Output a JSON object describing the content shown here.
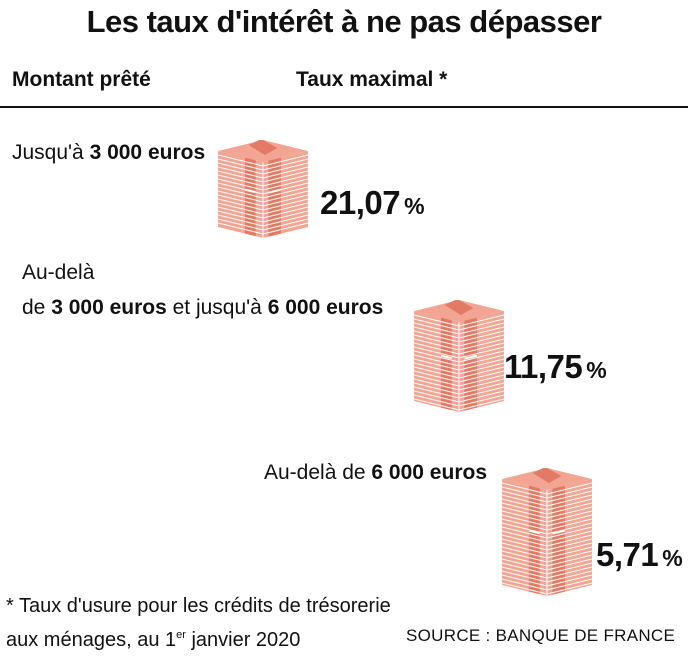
{
  "title": "Les taux d'intérêt à ne pas dépasser",
  "headers": {
    "amount": "Montant prêté",
    "rate": "Taux maximal *"
  },
  "tiers": [
    {
      "label_lines": [
        {
          "pre": "Jusqu'à ",
          "bold": "3 000 euros",
          "post": ""
        }
      ],
      "rate": "21,07",
      "unit": "%"
    },
    {
      "label_lines": [
        {
          "pre": "Au-delà",
          "bold": "",
          "post": ""
        },
        {
          "pre": "de ",
          "bold": "3 000 euros",
          "post": " et jusqu'à ",
          "bold2": "6 000 euros"
        }
      ],
      "rate": "11,75",
      "unit": "%"
    },
    {
      "label_lines": [
        {
          "pre": "Au-delà de ",
          "bold": "6 000 euros",
          "post": ""
        }
      ],
      "rate": "5,71",
      "unit": "%"
    }
  ],
  "footnote": {
    "line1": "* Taux d'usure pour les crédits de trésorerie",
    "line2_pre": "aux ménages, au 1",
    "line2_sup": "er",
    "line2_post": " janvier 2020"
  },
  "source": "SOURCE : BANQUE DE FRANCE",
  "colors": {
    "stack_fill": "#f2a593",
    "stack_band": "#e27a65",
    "stack_line": "#ffffff",
    "text": "#111111"
  },
  "icon": "banknote-stack-icon"
}
